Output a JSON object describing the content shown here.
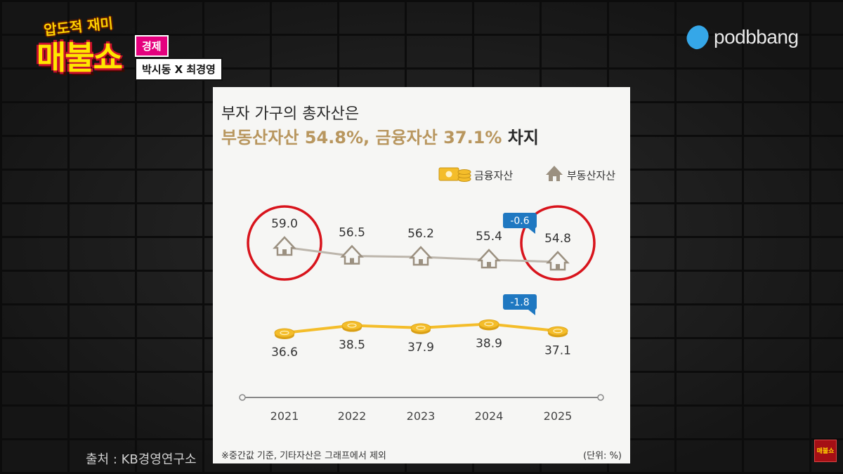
{
  "show": {
    "logo_top": "압도적 재미",
    "logo_main": "매불쇼",
    "category": "경제",
    "hosts": "박시동 X 최경영",
    "corner_badge": "매불쇼"
  },
  "brand": {
    "name": "podbbang"
  },
  "source": "출처 : KB경영연구소",
  "card": {
    "title_line1": "부자 가구의 총자산은",
    "title_line2_highlight": "부동산자산 54.8%, 금융자산 37.1%",
    "title_line2_suffix": "차지",
    "footnote": "※중간값 기준, 기타자산은 그래프에서 제외",
    "unit": "(단위: %)"
  },
  "colors": {
    "real_estate_line": "#bdb6ac",
    "real_estate_icon": "#9b9080",
    "financial_line": "#f4bd2a",
    "coin": "#f4bd2a",
    "change_badge": "#1f78c1",
    "highlight_circle": "#d8141c",
    "title_accent": "#b8965e"
  },
  "chart_data": {
    "type": "line",
    "title": "부자 가구의 총자산은 부동산자산 54.8%, 금융자산 37.1% 차지",
    "categories": [
      "2021",
      "2022",
      "2023",
      "2024",
      "2025"
    ],
    "series": [
      {
        "name": "부동산자산",
        "values": [
          59.0,
          56.5,
          56.2,
          55.4,
          54.8
        ],
        "labels": [
          "59.0",
          "56.5",
          "56.2",
          "55.4",
          "54.8"
        ],
        "icon": "house-icon"
      },
      {
        "name": "금융자산",
        "values": [
          36.6,
          38.5,
          37.9,
          38.9,
          37.1
        ],
        "labels": [
          "36.6",
          "38.5",
          "37.9",
          "38.9",
          "37.1"
        ],
        "icon": "coin-icon"
      }
    ],
    "legend": [
      {
        "label": "금융자산",
        "icon": "money-coin-icon"
      },
      {
        "label": "부동산자산",
        "icon": "house-icon"
      }
    ],
    "legend_position": "top-right",
    "annotations": [
      {
        "series": "부동산자산",
        "category": "2025",
        "text": "-0.6"
      },
      {
        "series": "금융자산",
        "category": "2025",
        "text": "-1.8"
      }
    ],
    "highlighted_categories": [
      "2021",
      "2025"
    ],
    "xlabel": "",
    "ylabel": ""
  }
}
